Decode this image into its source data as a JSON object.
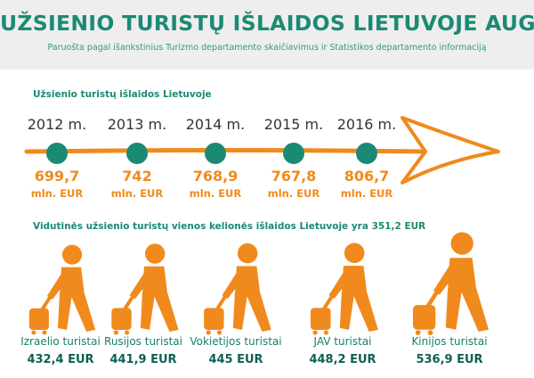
{
  "header": {
    "title": "UŽSIENIO TURISTŲ IŠLAIDOS LIETUVOJE AUGA",
    "subtitle": "Paruošta pagal išankstinius Turizmo departamento skaičiavimus ir Statistikos departamento informaciją"
  },
  "colors": {
    "teal": "#1b8a74",
    "orange": "#f08a1c",
    "dark_teal": "#0f5f55"
  },
  "chart_data": [
    {
      "type": "line",
      "title": "Užsienio turistų išlaidos Lietuvoje",
      "x": [
        "2012 m.",
        "2013 m.",
        "2014 m.",
        "2015 m.",
        "2016 m."
      ],
      "values": [
        699.7,
        742,
        768.9,
        767.8,
        806.7
      ],
      "value_labels": [
        "699,7",
        "742",
        "768,9",
        "767,8",
        "806,7"
      ],
      "unit": "mln. EUR"
    },
    {
      "type": "bar",
      "title": "Vidutinės užsienio turistų vienos kelionės išlaidos Lietuvoje yra 351,2 EUR",
      "categories": [
        "Izraelio turistai",
        "Rusijos turistai",
        "Vokietijos turistai",
        "JAV turistai",
        "Kinijos turistai"
      ],
      "values": [
        432.4,
        441.9,
        445,
        448.2,
        536.9
      ],
      "value_labels": [
        "432,4 EUR",
        "441,9 EUR",
        "445 EUR",
        "448,2 EUR",
        "536,9 EUR"
      ]
    }
  ]
}
